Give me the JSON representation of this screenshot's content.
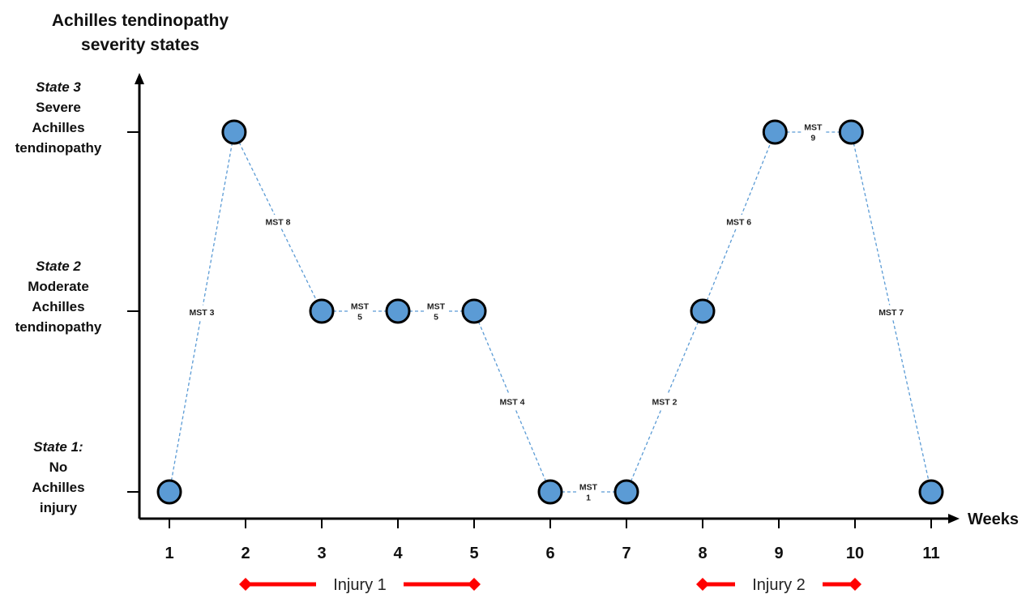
{
  "chart_data": {
    "type": "scatter",
    "title": [
      "Achilles tendinopathy",
      "severity states"
    ],
    "xlabel": "Weeks",
    "x_ticks": [
      "1",
      "2",
      "3",
      "4",
      "5",
      "6",
      "7",
      "8",
      "9",
      "10",
      "11"
    ],
    "y_categories": [
      {
        "state_label": "State 1:",
        "desc": [
          "No",
          "Achilles",
          "injury"
        ]
      },
      {
        "state_label": "State 2",
        "desc": [
          "Moderate",
          "Achilles",
          "tendinopathy"
        ]
      },
      {
        "state_label": "State 3",
        "desc": [
          "Severe",
          "Achilles",
          "tendinopathy"
        ]
      }
    ],
    "points": [
      {
        "x": 1,
        "state": 1
      },
      {
        "x": 1.85,
        "state": 3
      },
      {
        "x": 3,
        "state": 2
      },
      {
        "x": 4,
        "state": 2
      },
      {
        "x": 5,
        "state": 2
      },
      {
        "x": 6,
        "state": 1
      },
      {
        "x": 7,
        "state": 1
      },
      {
        "x": 8,
        "state": 2
      },
      {
        "x": 8.95,
        "state": 3
      },
      {
        "x": 9.95,
        "state": 3
      },
      {
        "x": 11,
        "state": 1
      }
    ],
    "transitions": [
      {
        "from": 0,
        "to": 1,
        "label": [
          "MST 3"
        ]
      },
      {
        "from": 1,
        "to": 2,
        "label": [
          "MST 8"
        ]
      },
      {
        "from": 2,
        "to": 3,
        "label": [
          "MST",
          "5"
        ]
      },
      {
        "from": 3,
        "to": 4,
        "label": [
          "MST",
          "5"
        ]
      },
      {
        "from": 4,
        "to": 5,
        "label": [
          "MST 4"
        ]
      },
      {
        "from": 5,
        "to": 6,
        "label": [
          "MST",
          "1"
        ]
      },
      {
        "from": 6,
        "to": 7,
        "label": [
          "MST 2"
        ]
      },
      {
        "from": 7,
        "to": 8,
        "label": [
          "MST 6"
        ]
      },
      {
        "from": 8,
        "to": 9,
        "label": [
          "MST",
          "9"
        ]
      },
      {
        "from": 9,
        "to": 10,
        "label": [
          "MST 7"
        ]
      }
    ],
    "injuries": [
      {
        "label": "Injury 1",
        "start": 2,
        "end": 5
      },
      {
        "label": "Injury 2",
        "start": 8,
        "end": 10
      }
    ],
    "colors": {
      "point_fill": "#5b9bd5",
      "point_stroke": "#000000",
      "link": "#5b9bd5",
      "injury": "#ff0000",
      "axis": "#000000"
    }
  }
}
